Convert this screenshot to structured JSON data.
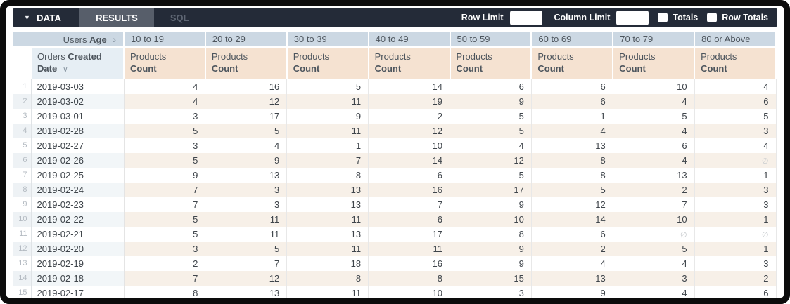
{
  "icons": {
    "caret_down": "▼",
    "chevron_right": "›",
    "chevron_down": "∨"
  },
  "toolbar": {
    "data_tab": "DATA",
    "results_tab": "RESULTS",
    "sql_tab": "SQL",
    "row_limit_label": "Row Limit",
    "row_limit_value": "",
    "column_limit_label": "Column Limit",
    "column_limit_value": "",
    "totals_label": "Totals",
    "totals_checked": false,
    "row_totals_label": "Row Totals",
    "row_totals_checked": false
  },
  "table": {
    "pivot_dimension": {
      "prefix": "Users",
      "field": "Age"
    },
    "row_dimension": {
      "prefix": "Orders",
      "field_line1": "Created",
      "field_line2": "Date"
    },
    "measure": {
      "prefix": "Products",
      "field": "Count"
    },
    "buckets": [
      "10 to 19",
      "20 to 29",
      "30 to 39",
      "40 to 49",
      "50 to 59",
      "60 to 69",
      "70 to 79",
      "80 or Above"
    ],
    "null_symbol": "∅",
    "rows": [
      {
        "num": 1,
        "date": "2019-03-03",
        "values": [
          4,
          16,
          5,
          14,
          6,
          6,
          10,
          4
        ]
      },
      {
        "num": 2,
        "date": "2019-03-02",
        "values": [
          4,
          12,
          11,
          19,
          9,
          6,
          4,
          6
        ]
      },
      {
        "num": 3,
        "date": "2019-03-01",
        "values": [
          3,
          17,
          9,
          2,
          5,
          1,
          5,
          5
        ]
      },
      {
        "num": 4,
        "date": "2019-02-28",
        "values": [
          5,
          5,
          11,
          12,
          5,
          4,
          4,
          3
        ]
      },
      {
        "num": 5,
        "date": "2019-02-27",
        "values": [
          3,
          4,
          1,
          10,
          4,
          13,
          6,
          4
        ]
      },
      {
        "num": 6,
        "date": "2019-02-26",
        "values": [
          5,
          9,
          7,
          14,
          12,
          8,
          4,
          null
        ]
      },
      {
        "num": 7,
        "date": "2019-02-25",
        "values": [
          9,
          13,
          8,
          6,
          5,
          8,
          13,
          1
        ]
      },
      {
        "num": 8,
        "date": "2019-02-24",
        "values": [
          7,
          3,
          13,
          16,
          17,
          5,
          2,
          3
        ]
      },
      {
        "num": 9,
        "date": "2019-02-23",
        "values": [
          7,
          3,
          13,
          7,
          9,
          12,
          7,
          3
        ]
      },
      {
        "num": 10,
        "date": "2019-02-22",
        "values": [
          5,
          11,
          11,
          6,
          10,
          14,
          10,
          1
        ]
      },
      {
        "num": 11,
        "date": "2019-02-21",
        "values": [
          5,
          11,
          13,
          17,
          8,
          6,
          null,
          null
        ]
      },
      {
        "num": 12,
        "date": "2019-02-20",
        "values": [
          3,
          5,
          11,
          11,
          9,
          2,
          5,
          1
        ]
      },
      {
        "num": 13,
        "date": "2019-02-19",
        "values": [
          2,
          7,
          18,
          16,
          9,
          4,
          4,
          3
        ]
      },
      {
        "num": 14,
        "date": "2019-02-18",
        "values": [
          7,
          12,
          8,
          8,
          15,
          13,
          3,
          2
        ]
      },
      {
        "num": 15,
        "date": "2019-02-17",
        "values": [
          8,
          13,
          11,
          10,
          3,
          9,
          4,
          6
        ]
      }
    ]
  },
  "colors": {
    "toolbar_bg": "#242b38",
    "results_tab_bg": "#575e6a",
    "pivot_header_bg": "#ccd8e3",
    "dim_header_bg": "#e6eef4",
    "measure_header_bg": "#f5e2d1",
    "stripe_dim_bg": "#f2f6f8",
    "stripe_measure_bg": "#f7f0e8",
    "frame_border": "#0c0c0c"
  }
}
